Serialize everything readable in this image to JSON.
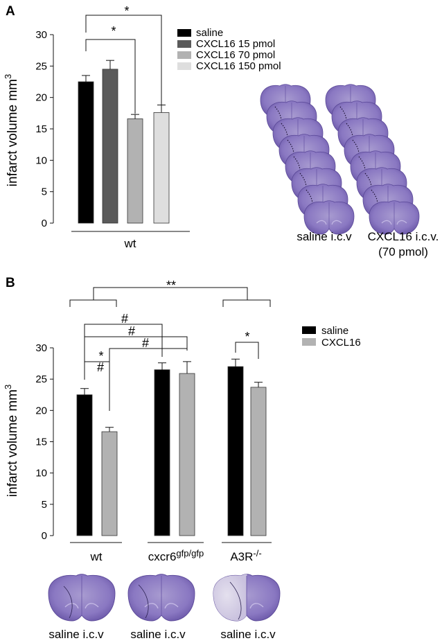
{
  "panel_a": {
    "letter": "A"
  },
  "panel_b": {
    "letter": "B"
  },
  "chart_data": [
    {
      "type": "bar",
      "ylabel": "infarct volume mm",
      "ylabel_superscript": "3",
      "ylim": [
        0,
        30
      ],
      "yticks": [
        "0",
        "5",
        "10",
        "15",
        "20",
        "25",
        "30"
      ],
      "categories": [
        "wt"
      ],
      "series": [
        {
          "name": "saline",
          "values": [
            22.5
          ],
          "error": [
            1.0
          ],
          "color": "#000000"
        },
        {
          "name": "CXCL16 15 pmol",
          "values": [
            24.5
          ],
          "error": [
            1.4
          ],
          "color": "#5a5a5a"
        },
        {
          "name": "CXCL16 70 pmol",
          "values": [
            16.6
          ],
          "error": [
            0.7
          ],
          "color": "#b2b2b2"
        },
        {
          "name": "CXCL16 150 pmol",
          "values": [
            17.6
          ],
          "error": [
            1.2
          ],
          "color": "#dedede"
        }
      ],
      "annotations": [
        "*",
        "*"
      ],
      "legend_position": "top-right",
      "images": [
        {
          "name": "brain-sections-saline",
          "caption": "saline i.c.v"
        },
        {
          "name": "brain-sections-cxcl16",
          "caption": "CXCL16 i.c.v.",
          "caption2": "(70 pmol)"
        }
      ]
    },
    {
      "type": "bar",
      "ylabel": "infarct volume mm",
      "ylabel_superscript": "3",
      "ylim": [
        0,
        30
      ],
      "yticks": [
        "0",
        "5",
        "10",
        "15",
        "20",
        "25",
        "30"
      ],
      "categories": [
        "wt",
        "cxcr6",
        "A3R"
      ],
      "category_superscripts": [
        "",
        "gfp/gfp",
        "-/-"
      ],
      "series": [
        {
          "name": "saline",
          "values": [
            22.5,
            26.5,
            27.0
          ],
          "error": [
            1.0,
            1.1,
            1.2
          ],
          "color": "#000000"
        },
        {
          "name": "CXCL16",
          "values": [
            16.6,
            25.9,
            23.7
          ],
          "error": [
            0.7,
            1.9,
            0.8
          ],
          "color": "#b2b2b2"
        }
      ],
      "annotations": [
        "**",
        "#",
        "#",
        "#",
        "*",
        "#",
        "*"
      ],
      "legend_position": "top-right",
      "captions": [
        "saline i.c.v",
        "saline i.c.v",
        "saline i.c.v"
      ]
    }
  ]
}
